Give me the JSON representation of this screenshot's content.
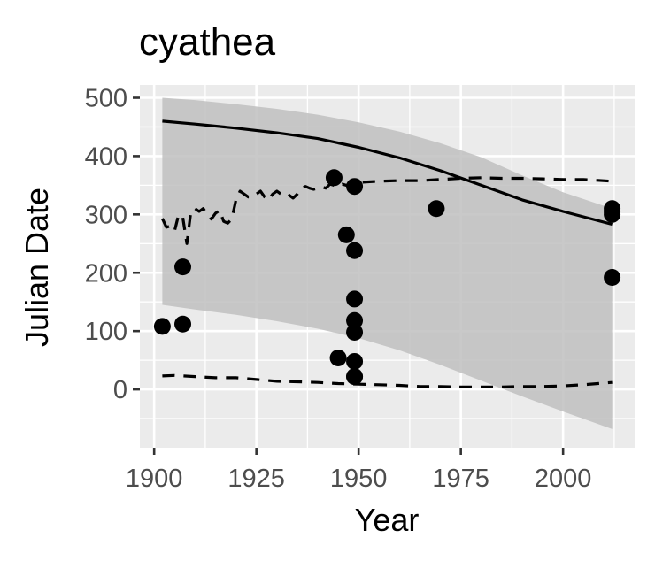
{
  "chart_data": {
    "type": "scatter",
    "title": "cyathea",
    "xlabel": "Year",
    "ylabel": "Julian Date",
    "xlim": [
      1896.5,
      2017.5
    ],
    "ylim": [
      -100,
      522
    ],
    "xticks": [
      1900,
      1925,
      1950,
      1975,
      2000
    ],
    "yticks": [
      0,
      100,
      200,
      300,
      400,
      500
    ],
    "grid": true,
    "legend": "none",
    "colors": {
      "panel": "#ebebeb",
      "grid": "#ffffff",
      "ribbon": "#bfbfbf",
      "points": "#000000",
      "lines": "#000000",
      "tick_text": "#4d4d4d",
      "tick_mark": "#333333"
    },
    "series": [
      {
        "type": "ribbon",
        "x": [
          1902,
          1910,
          1920,
          1930,
          1940,
          1950,
          1960,
          1970,
          1980,
          1990,
          2000,
          2012
        ],
        "lower": [
          145,
          137,
          128,
          117,
          104,
          88,
          67,
          42,
          15,
          -12,
          -38,
          -68
        ],
        "upper": [
          500,
          496,
          489,
          481,
          471,
          458,
          442,
          422,
          398,
          367,
          338,
          310
        ]
      },
      {
        "type": "line",
        "style": "solid",
        "x": [
          1902,
          1910,
          1920,
          1930,
          1940,
          1950,
          1960,
          1970,
          1980,
          1990,
          2000,
          2012
        ],
        "y": [
          460,
          455,
          448,
          440,
          430,
          415,
          397,
          375,
          350,
          325,
          305,
          283
        ]
      },
      {
        "type": "line",
        "style": "dashed",
        "x": [
          1902,
          1903,
          1904,
          1905,
          1906,
          1907,
          1908,
          1909,
          1910,
          1911,
          1912,
          1913,
          1914,
          1915,
          1916,
          1917,
          1918,
          1919,
          1920,
          1921,
          1922,
          1923,
          1924,
          1925,
          1926,
          1927,
          1928,
          1929,
          1930,
          1931,
          1932,
          1933,
          1934,
          1935,
          1936,
          1937,
          1938,
          1939,
          1940,
          1941,
          1942,
          1943,
          1944,
          1945,
          1946,
          1947,
          1948,
          1949,
          1950,
          1955,
          1960,
          1965,
          1970,
          1975,
          1980,
          1985,
          1990,
          1995,
          2000,
          2005,
          2012
        ],
        "y": [
          293,
          278,
          280,
          272,
          300,
          295,
          250,
          305,
          310,
          305,
          310,
          300,
          292,
          302,
          307,
          288,
          285,
          292,
          325,
          340,
          335,
          330,
          330,
          335,
          340,
          330,
          325,
          335,
          340,
          335,
          338,
          333,
          328,
          335,
          345,
          348,
          345,
          343,
          345,
          347,
          345,
          352,
          350,
          348,
          352,
          350,
          352,
          355,
          355,
          357,
          358,
          358,
          360,
          362,
          363,
          362,
          362,
          361,
          360,
          360,
          357
        ]
      },
      {
        "type": "line",
        "style": "dashed",
        "x": [
          1902,
          1905,
          1910,
          1915,
          1920,
          1925,
          1930,
          1935,
          1940,
          1945,
          1950,
          1955,
          1960,
          1965,
          1970,
          1975,
          1980,
          1985,
          1990,
          1995,
          2000,
          2005,
          2012
        ],
        "y": [
          23,
          24,
          22,
          20,
          20,
          17,
          14,
          13,
          12,
          10,
          9,
          8,
          7,
          5,
          5,
          4,
          4,
          4,
          5,
          5,
          6,
          8,
          12
        ]
      },
      {
        "type": "points",
        "x": [
          1902,
          1907,
          1907,
          1944,
          1945,
          1947,
          1949,
          1949,
          1949,
          1949,
          1949,
          1949,
          1949,
          1949,
          1969,
          2012,
          2012,
          2012,
          2012
        ],
        "y": [
          108,
          210,
          112,
          363,
          54,
          265,
          348,
          238,
          155,
          118,
          98,
          48,
          22,
          22,
          310,
          310,
          305,
          300,
          192
        ]
      }
    ]
  }
}
